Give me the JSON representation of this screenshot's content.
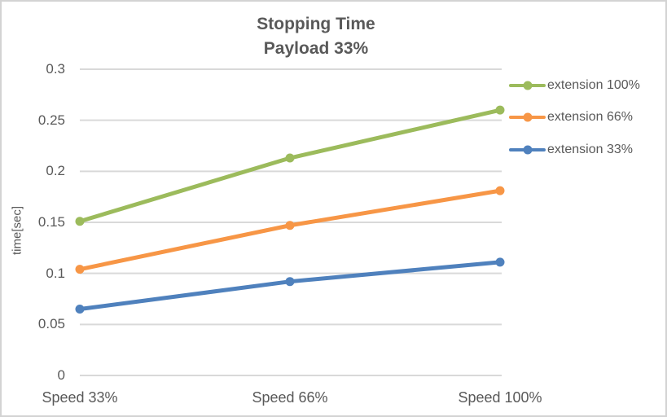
{
  "title": {
    "line1": "Stopping Time",
    "line2": "Payload 33%"
  },
  "chart_data": {
    "type": "line",
    "title": "Stopping Time — Payload 33%",
    "categories": [
      "Speed 33%",
      "Speed 66%",
      "Speed 100%"
    ],
    "series": [
      {
        "name": "extension 100%",
        "color": "#9CBB5C",
        "values": [
          0.151,
          0.213,
          0.26
        ]
      },
      {
        "name": "extension 66%",
        "color": "#F79646",
        "values": [
          0.104,
          0.147,
          0.181
        ]
      },
      {
        "name": "extension 33%",
        "color": "#4F81BD",
        "values": [
          0.065,
          0.092,
          0.111
        ]
      }
    ],
    "xlabel": "",
    "ylabel": "time[sec]",
    "ylim": [
      0,
      0.3
    ],
    "ytick_step": 0.05,
    "ytick_labels": [
      "0",
      "0.05",
      "0.1",
      "0.15",
      "0.2",
      "0.25",
      "0.3"
    ],
    "grid": true,
    "legend_position": "right",
    "marker": "circle",
    "text_color": "#595959",
    "grid_color": "#d9d9d9",
    "frame_border_color": "#d3d3d3",
    "background_color": "#ffffff"
  }
}
